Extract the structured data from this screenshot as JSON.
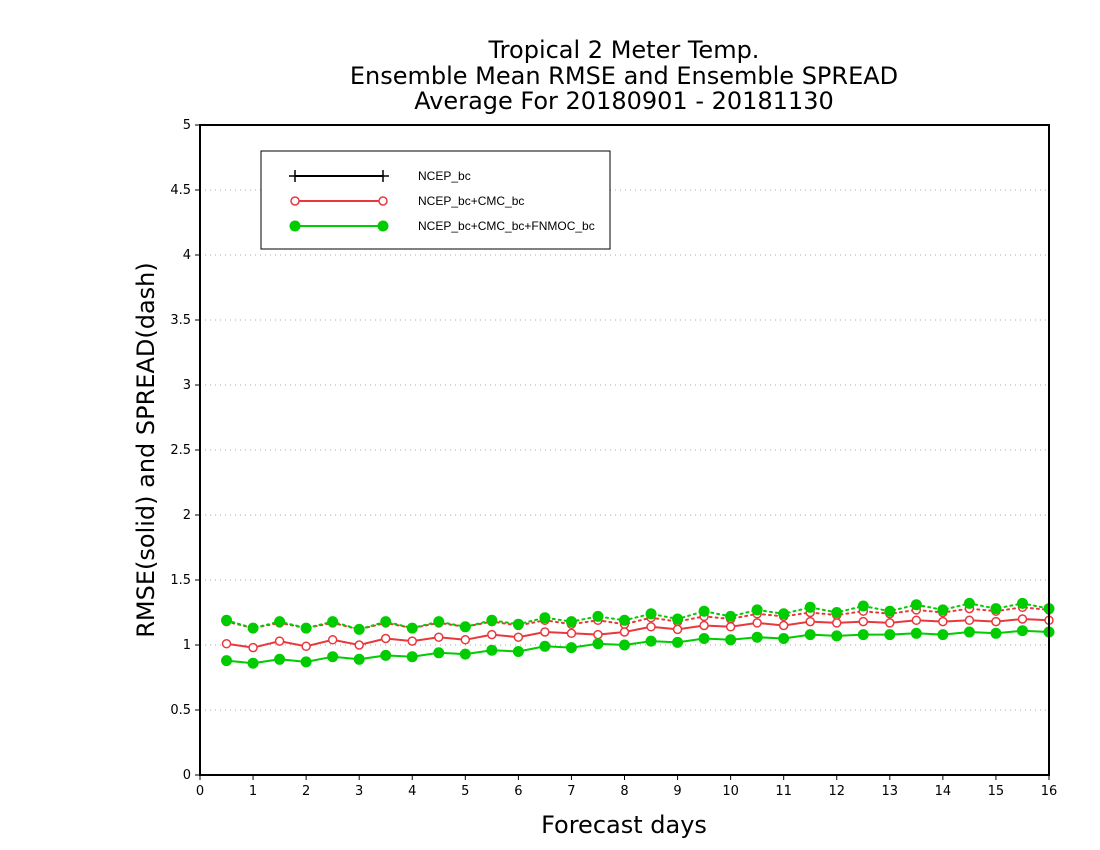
{
  "chart_data": {
    "type": "line",
    "title_lines": [
      "Tropical 2 Meter Temp.",
      "Ensemble Mean RMSE and Ensemble SPREAD",
      "Average For 20180901 - 20181130"
    ],
    "xlabel": "Forecast days",
    "ylabel": "RMSE(solid) and SPREAD(dash)",
    "xlim": [
      0,
      16
    ],
    "ylim": [
      0,
      5
    ],
    "xticks": [
      "0",
      "1",
      "2",
      "3",
      "4",
      "5",
      "6",
      "7",
      "8",
      "9",
      "10",
      "11",
      "12",
      "13",
      "14",
      "15",
      "16"
    ],
    "yticks": [
      "0",
      "0.5",
      "1",
      "1.5",
      "2",
      "2.5",
      "3",
      "3.5",
      "4",
      "4.5",
      "5"
    ],
    "grid": true,
    "legend_position": "top-left",
    "x": [
      0.5,
      1,
      1.5,
      2,
      2.5,
      3,
      3.5,
      4,
      4.5,
      5,
      5.5,
      6,
      6.5,
      7,
      7.5,
      8,
      8.5,
      9,
      9.5,
      10,
      10.5,
      11,
      11.5,
      12,
      12.5,
      13,
      13.5,
      14,
      14.5,
      15,
      15.5,
      16
    ],
    "series": [
      {
        "name": "NCEP_bc",
        "color": "#000000",
        "marker": "plus",
        "rmse": [],
        "spread": []
      },
      {
        "name": "NCEP_bc+CMC_bc",
        "color": "#e8383d",
        "marker": "open-circle",
        "rmse": [
          1.01,
          0.98,
          1.03,
          0.99,
          1.04,
          1.0,
          1.05,
          1.03,
          1.06,
          1.04,
          1.08,
          1.06,
          1.1,
          1.09,
          1.08,
          1.1,
          1.14,
          1.12,
          1.15,
          1.14,
          1.17,
          1.15,
          1.18,
          1.17,
          1.18,
          1.17,
          1.19,
          1.18,
          1.19,
          1.18,
          1.2,
          1.19
        ],
        "spread": [
          1.18,
          1.13,
          1.17,
          1.13,
          1.17,
          1.12,
          1.17,
          1.13,
          1.17,
          1.14,
          1.18,
          1.15,
          1.19,
          1.16,
          1.19,
          1.16,
          1.21,
          1.18,
          1.22,
          1.2,
          1.24,
          1.22,
          1.25,
          1.23,
          1.26,
          1.24,
          1.27,
          1.25,
          1.28,
          1.26,
          1.29,
          1.27
        ]
      },
      {
        "name": "NCEP_bc+CMC_bc+FNMOC_bc",
        "color": "#00cc00",
        "marker": "filled-circle",
        "rmse": [
          0.88,
          0.86,
          0.89,
          0.87,
          0.91,
          0.89,
          0.92,
          0.91,
          0.94,
          0.93,
          0.96,
          0.95,
          0.99,
          0.98,
          1.01,
          1.0,
          1.03,
          1.02,
          1.05,
          1.04,
          1.06,
          1.05,
          1.08,
          1.07,
          1.08,
          1.08,
          1.09,
          1.08,
          1.1,
          1.09,
          1.11,
          1.1
        ],
        "spread": [
          1.19,
          1.13,
          1.18,
          1.13,
          1.18,
          1.12,
          1.18,
          1.13,
          1.18,
          1.14,
          1.19,
          1.16,
          1.21,
          1.18,
          1.22,
          1.19,
          1.24,
          1.2,
          1.26,
          1.22,
          1.27,
          1.24,
          1.29,
          1.25,
          1.3,
          1.26,
          1.31,
          1.27,
          1.32,
          1.28,
          1.32,
          1.28
        ]
      }
    ]
  }
}
